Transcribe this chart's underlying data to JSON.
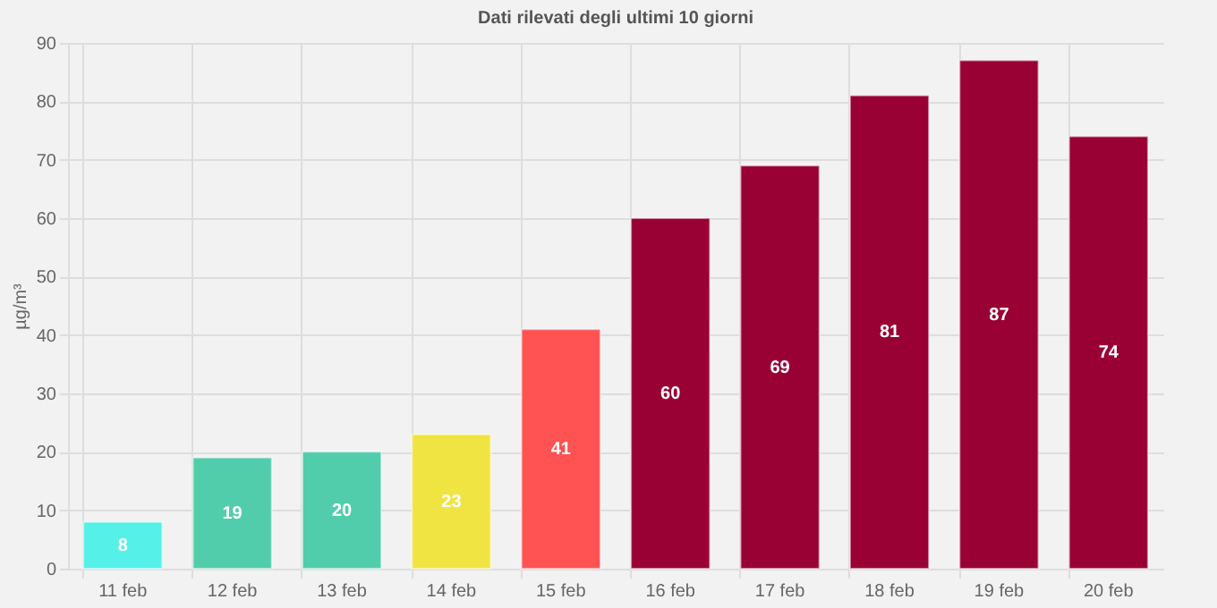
{
  "chart_data": {
    "type": "bar",
    "title": "Dati rilevati degli ultimi 10 giorni",
    "ylabel": "µg/m³",
    "categories": [
      "11 feb",
      "12 feb",
      "13 feb",
      "14 feb",
      "15 feb",
      "16 feb",
      "17 feb",
      "18 feb",
      "19 feb",
      "20 feb"
    ],
    "values": [
      8,
      19,
      20,
      23,
      41,
      60,
      69,
      81,
      87,
      74
    ],
    "colors": [
      "#55f0e8",
      "#52cdab",
      "#52cdab",
      "#f0e442",
      "#ff5252",
      "#990033",
      "#990033",
      "#990033",
      "#990033",
      "#990033"
    ],
    "ylim": [
      0,
      90
    ],
    "yticks": [
      0,
      10,
      20,
      30,
      40,
      50,
      60,
      70,
      80,
      90
    ],
    "grid": true,
    "data_labels": true
  }
}
